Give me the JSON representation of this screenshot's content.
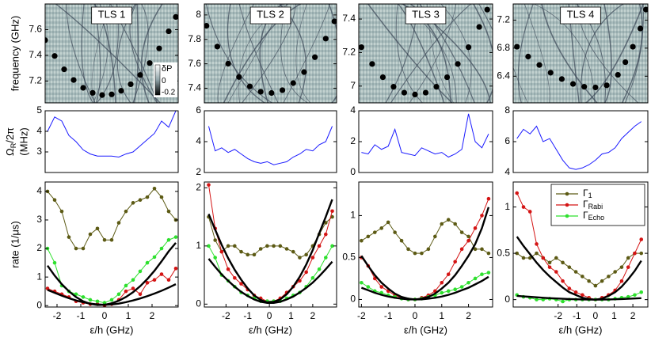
{
  "chart_data": [
    {
      "type": "scatter",
      "title": "TLS 1",
      "ylabel": "frequency (GHz)",
      "color": "#000000",
      "x": [
        -2.5,
        -2.1,
        -1.7,
        -1.3,
        -0.9,
        -0.5,
        -0.1,
        0.3,
        0.7,
        1.1,
        1.5,
        1.9,
        2.3,
        2.7,
        3.0
      ],
      "values": [
        7.518,
        7.395,
        7.291,
        7.208,
        7.147,
        7.108,
        7.091,
        7.096,
        7.124,
        7.175,
        7.247,
        7.34,
        7.454,
        7.587,
        7.699
      ],
      "xlim": [
        -2.5,
        3.1
      ],
      "ylim": [
        7.03,
        7.8
      ],
      "yticks": [
        7.2,
        7.4,
        7.6
      ],
      "colorbar": {
        "label": "δP",
        "clim": [
          -0.24,
          0.27
        ],
        "ticks": [
          0,
          -0.2
        ]
      }
    },
    {
      "type": "scatter",
      "title": "TLS 2",
      "color": "#000000",
      "x": [
        -2.9,
        -2.4,
        -1.9,
        -1.4,
        -0.9,
        -0.4,
        0.1,
        0.6,
        1.1,
        1.6,
        2.1,
        2.6,
        3.0
      ],
      "values": [
        7.911,
        7.741,
        7.601,
        7.492,
        7.415,
        7.371,
        7.361,
        7.384,
        7.442,
        7.532,
        7.654,
        7.806,
        7.948
      ],
      "xlim": [
        -3.0,
        3.1
      ],
      "ylim": [
        7.28,
        8.09
      ],
      "yticks": [
        7.4,
        7.6,
        7.8,
        8
      ]
    },
    {
      "type": "scatter",
      "title": "TLS 3",
      "color": "#000000",
      "x": [
        -2.0,
        -1.6,
        -1.2,
        -0.8,
        -0.4,
        0,
        0.4,
        0.8,
        1.2,
        1.6,
        2.0,
        2.4,
        2.7
      ],
      "values": [
        7.232,
        7.132,
        7.053,
        6.996,
        6.961,
        6.95,
        6.961,
        6.996,
        7.053,
        7.132,
        7.232,
        7.353,
        7.456
      ],
      "xlim": [
        -2.1,
        2.9
      ],
      "ylim": [
        6.9,
        7.49
      ],
      "yticks": [
        7,
        7.2,
        7.4
      ]
    },
    {
      "type": "scatter",
      "title": "TLS 4",
      "color": "#000000",
      "x": [
        -4.2,
        -3.6,
        -3.0,
        -2.4,
        -1.8,
        -1.2,
        -0.6,
        0,
        0.6,
        1.2,
        1.6,
        2.0,
        2.4,
        2.7
      ],
      "values": [
        6.82,
        6.68,
        6.56,
        6.45,
        6.36,
        6.29,
        6.25,
        6.24,
        6.27,
        6.42,
        6.6,
        6.82,
        7.08,
        7.35
      ],
      "xlim": [
        -4.4,
        2.8
      ],
      "ylim": [
        6.02,
        7.43
      ],
      "yticks": [
        6.4,
        6.8,
        7.2
      ]
    },
    {
      "type": "line",
      "ylabel": {
        "symbol": "Ω",
        "sub": "R",
        "rest": "/2π",
        "unit": "(MHz)"
      },
      "color": "#1a1aff",
      "x": [
        -2.4,
        -2.1,
        -1.8,
        -1.5,
        -1.2,
        -0.9,
        -0.6,
        -0.3,
        0,
        0.3,
        0.6,
        0.9,
        1.2,
        1.5,
        1.8,
        2.1,
        2.4,
        2.7,
        3.0
      ],
      "values": [
        4.0,
        4.7,
        4.5,
        3.8,
        3.5,
        3.1,
        2.9,
        2.8,
        2.8,
        2.8,
        2.75,
        2.9,
        3.0,
        3.3,
        3.6,
        3.9,
        4.5,
        4.2,
        5.0
      ],
      "xlim": [
        -2.5,
        3.1
      ],
      "ylim": [
        2,
        5
      ],
      "yticks": [
        3,
        4,
        5
      ]
    },
    {
      "type": "line",
      "color": "#1a1aff",
      "x": [
        -2.8,
        -2.5,
        -2.2,
        -1.9,
        -1.6,
        -1.3,
        -1.0,
        -0.7,
        -0.4,
        -0.1,
        0.2,
        0.5,
        0.8,
        1.1,
        1.4,
        1.7,
        2.0,
        2.3,
        2.6,
        2.9
      ],
      "values": [
        5.0,
        3.4,
        3.6,
        3.3,
        3.5,
        3.2,
        2.9,
        2.7,
        2.6,
        2.7,
        2.5,
        2.6,
        2.7,
        3.0,
        3.2,
        3.5,
        3.4,
        3.8,
        4.0,
        5.0
      ],
      "xlim": [
        -3.0,
        3.1
      ],
      "ylim": [
        2,
        6
      ],
      "yticks": [
        2,
        4,
        6
      ]
    },
    {
      "type": "line",
      "color": "#1a1aff",
      "x": [
        -2,
        -1.75,
        -1.5,
        -1.25,
        -1,
        -0.75,
        -0.5,
        -0.25,
        0,
        0.25,
        0.5,
        0.75,
        1,
        1.25,
        1.5,
        1.75,
        2,
        2.25,
        2.5,
        2.75
      ],
      "values": [
        1.3,
        1.2,
        1.8,
        1.5,
        1.7,
        2.8,
        1.3,
        1.2,
        1.1,
        1.6,
        1.4,
        1.2,
        1.3,
        1.0,
        1.2,
        1.5,
        3.8,
        2.0,
        1.6,
        2.5
      ],
      "xlim": [
        -2.1,
        2.9
      ],
      "ylim": [
        0,
        4
      ],
      "yticks": [
        0,
        2,
        4
      ]
    },
    {
      "type": "line",
      "color": "#1a1aff",
      "x": [
        -4.2,
        -3.85,
        -3.5,
        -3.15,
        -2.8,
        -2.45,
        -2.1,
        -1.75,
        -1.4,
        -1.05,
        -0.7,
        -0.35,
        0,
        0.35,
        0.7,
        1.05,
        1.4,
        1.75,
        2.1,
        2.45
      ],
      "values": [
        6.2,
        6.8,
        6.5,
        7.0,
        6.0,
        6.2,
        5.5,
        4.8,
        4.3,
        4.2,
        4.3,
        4.5,
        4.8,
        5.2,
        5.3,
        5.6,
        6.2,
        6.6,
        7.0,
        7.3
      ],
      "xlim": [
        -4.4,
        2.8
      ],
      "ylim": [
        4,
        8
      ],
      "yticks": [
        4,
        6,
        8
      ]
    },
    {
      "type": "rates",
      "ylabel": "rate (1/μs)",
      "xlabel": "ε/h (GHz)",
      "x": [
        -2.4,
        -2.1,
        -1.8,
        -1.5,
        -1.2,
        -0.9,
        -0.6,
        -0.3,
        0,
        0.3,
        0.6,
        0.9,
        1.2,
        1.5,
        1.8,
        2.1,
        2.4,
        2.7,
        3.0
      ],
      "series": [
        {
          "color": "#5c5a14",
          "marker": true,
          "values": [
            4.0,
            3.7,
            3.3,
            2.4,
            2.0,
            2.0,
            2.5,
            2.7,
            2.3,
            2.3,
            2.9,
            3.3,
            3.6,
            3.7,
            3.8,
            4.1,
            3.8,
            3.3,
            3.0
          ]
        },
        {
          "color": "#d41414",
          "marker": true,
          "values": [
            0.6,
            0.5,
            0.4,
            0.3,
            0.15,
            0.1,
            0.05,
            0.05,
            0.0,
            0.05,
            0.2,
            0.5,
            0.6,
            0.4,
            0.8,
            0.9,
            1.1,
            0.9,
            1.3
          ]
        },
        {
          "color": "#2ee02e",
          "marker": true,
          "values": [
            2.0,
            1.5,
            0.7,
            0.5,
            0.4,
            0.3,
            0.2,
            0.15,
            0.1,
            0.2,
            0.4,
            0.7,
            0.9,
            1.2,
            1.5,
            1.7,
            2.0,
            2.3,
            2.4
          ]
        },
        {
          "color": "#000000",
          "marker": false,
          "values": [
            1.4,
            1.05,
            0.75,
            0.5,
            0.3,
            0.15,
            0.06,
            0.02,
            0.03,
            0.08,
            0.17,
            0.3,
            0.47,
            0.68,
            0.93,
            1.22,
            1.55,
            1.9,
            2.2
          ]
        },
        {
          "color": "#000000",
          "marker": false,
          "values": [
            0.55,
            0.45,
            0.35,
            0.26,
            0.18,
            0.12,
            0.07,
            0.04,
            0.03,
            0.04,
            0.07,
            0.12,
            0.18,
            0.25,
            0.33,
            0.42,
            0.52,
            0.63,
            0.75
          ]
        }
      ],
      "xlim": [
        -2.5,
        3.1
      ],
      "ylim": [
        -0.05,
        4.33
      ],
      "yticks": [
        0,
        1,
        2,
        3,
        4
      ],
      "xticks": [
        -2,
        -1,
        0,
        1,
        2
      ]
    },
    {
      "type": "rates",
      "xlabel": "ε/h (GHz)",
      "x": [
        -2.8,
        -2.5,
        -2.2,
        -1.9,
        -1.6,
        -1.3,
        -1.0,
        -0.7,
        -0.4,
        -0.1,
        0.2,
        0.5,
        0.8,
        1.1,
        1.4,
        1.7,
        2.0,
        2.3,
        2.6,
        2.9
      ],
      "series": [
        {
          "color": "#5c5a14",
          "marker": true,
          "values": [
            1.5,
            1.1,
            0.9,
            1.0,
            1.0,
            0.9,
            0.85,
            0.85,
            0.95,
            1.0,
            1.0,
            1.0,
            0.95,
            0.9,
            0.8,
            0.85,
            1.0,
            1.2,
            1.4,
            1.5
          ]
        },
        {
          "color": "#d41414",
          "marker": true,
          "values": [
            2.05,
            1.3,
            0.9,
            0.6,
            0.45,
            0.35,
            0.25,
            0.15,
            0.1,
            0.05,
            0.05,
            0.1,
            0.2,
            0.3,
            0.4,
            0.55,
            0.8,
            1.0,
            1.2,
            1.6
          ]
        },
        {
          "color": "#2ee02e",
          "marker": true,
          "values": [
            1.0,
            0.8,
            0.5,
            0.4,
            0.3,
            0.2,
            0.15,
            0.1,
            0.05,
            0.05,
            0.05,
            0.05,
            0.1,
            0.15,
            0.2,
            0.3,
            0.45,
            0.6,
            0.8,
            1.0
          ]
        },
        {
          "color": "#000000",
          "marker": false,
          "values": [
            1.55,
            1.28,
            1.02,
            0.79,
            0.59,
            0.42,
            0.27,
            0.15,
            0.07,
            0.03,
            0.04,
            0.08,
            0.17,
            0.3,
            0.47,
            0.68,
            0.93,
            1.22,
            1.5,
            1.8
          ]
        },
        {
          "color": "#000000",
          "marker": false,
          "values": [
            0.78,
            0.64,
            0.51,
            0.4,
            0.3,
            0.21,
            0.14,
            0.08,
            0.04,
            0.02,
            0.02,
            0.04,
            0.08,
            0.13,
            0.2,
            0.28,
            0.37,
            0.48,
            0.6,
            0.73
          ]
        }
      ],
      "xlim": [
        -3.0,
        3.1
      ],
      "ylim": [
        -0.05,
        2.1
      ],
      "yticks": [
        0,
        1,
        2
      ],
      "xticks": [
        -2,
        -1,
        0,
        1,
        2
      ]
    },
    {
      "type": "rates",
      "xlabel": "ε/h (GHz)",
      "x": [
        -2,
        -1.75,
        -1.5,
        -1.25,
        -1,
        -0.75,
        -0.5,
        -0.25,
        0,
        0.25,
        0.5,
        0.75,
        1,
        1.25,
        1.5,
        1.75,
        2,
        2.25,
        2.5,
        2.75
      ],
      "series": [
        {
          "color": "#5c5a14",
          "marker": true,
          "values": [
            0.7,
            0.75,
            0.8,
            0.85,
            0.92,
            0.8,
            0.7,
            0.6,
            0.55,
            0.55,
            0.6,
            0.75,
            0.9,
            0.95,
            0.9,
            0.8,
            0.75,
            0.6,
            0.6,
            0.55
          ]
        },
        {
          "color": "#d41414",
          "marker": true,
          "values": [
            0.5,
            0.4,
            0.25,
            0.15,
            0.1,
            0.05,
            0.02,
            0.0,
            0.0,
            0.02,
            0.05,
            0.1,
            0.2,
            0.3,
            0.45,
            0.6,
            0.7,
            0.85,
            1.0,
            1.2
          ]
        },
        {
          "color": "#2ee02e",
          "marker": true,
          "values": [
            0.2,
            0.15,
            0.1,
            0.08,
            0.05,
            0.03,
            0.01,
            0.0,
            0.0,
            0.01,
            0.03,
            0.05,
            0.08,
            0.1,
            0.12,
            0.15,
            0.2,
            0.25,
            0.3,
            0.32
          ]
        },
        {
          "color": "#000000",
          "marker": false,
          "values": [
            0.52,
            0.4,
            0.29,
            0.2,
            0.13,
            0.07,
            0.03,
            0.01,
            0.0,
            0.01,
            0.03,
            0.07,
            0.13,
            0.2,
            0.29,
            0.4,
            0.52,
            0.66,
            0.85,
            1.1
          ]
        },
        {
          "color": "#000000",
          "marker": false,
          "values": [
            0.14,
            0.11,
            0.08,
            0.055,
            0.035,
            0.02,
            0.01,
            0.002,
            0,
            0.002,
            0.01,
            0.02,
            0.035,
            0.055,
            0.08,
            0.11,
            0.14,
            0.18,
            0.22,
            0.27
          ]
        }
      ],
      "xlim": [
        -2.1,
        2.9
      ],
      "ylim": [
        -0.09,
        1.4
      ],
      "yticks": [
        0,
        0.5,
        1
      ],
      "xticks": [
        -2,
        -1,
        0,
        1,
        2
      ]
    },
    {
      "type": "rates",
      "xlabel": "ε/h (GHz)",
      "legend": "upper right",
      "x": [
        -4.2,
        -3.85,
        -3.5,
        -3.15,
        -2.8,
        -2.45,
        -2.1,
        -1.75,
        -1.4,
        -1.05,
        -0.7,
        -0.35,
        0,
        0.35,
        0.7,
        1.05,
        1.4,
        1.75,
        2.1,
        2.45
      ],
      "series": [
        {
          "name": "Γ",
          "name_sub": "1",
          "color": "#5c5a14",
          "marker": true,
          "values": [
            0.5,
            0.45,
            0.45,
            0.5,
            0.45,
            0.4,
            0.45,
            0.4,
            0.35,
            0.3,
            0.25,
            0.2,
            0.15,
            0.2,
            0.25,
            0.3,
            0.35,
            0.45,
            0.5,
            0.5
          ]
        },
        {
          "name": "Γ",
          "name_sub": "Rabi",
          "color": "#d41414",
          "marker": true,
          "values": [
            1.15,
            1.0,
            0.95,
            0.6,
            0.45,
            0.35,
            0.3,
            0.2,
            0.12,
            0.08,
            0.05,
            0.02,
            0.0,
            0.02,
            0.05,
            0.1,
            0.2,
            0.35,
            0.5,
            0.65
          ]
        },
        {
          "name": "Γ",
          "name_sub": "Echo",
          "color": "#2ee02e",
          "marker": true,
          "values": [
            0.05,
            0.03,
            0.02,
            0.0,
            0.0,
            0.01,
            0.0,
            -0.02,
            0.0,
            0.0,
            0.0,
            0.0,
            0.0,
            0.0,
            0.0,
            0.01,
            0.02,
            0.03,
            0.05,
            0.08
          ]
        },
        {
          "color": "#000000",
          "marker": false,
          "values": [
            0.68,
            0.58,
            0.49,
            0.4,
            0.32,
            0.25,
            0.19,
            0.13,
            0.08,
            0.05,
            0.02,
            0.005,
            0,
            0.01,
            0.04,
            0.08,
            0.14,
            0.22,
            0.31,
            0.42
          ]
        },
        {
          "color": "#000000",
          "marker": false,
          "values": [
            0.04,
            0.035,
            0.03,
            0.025,
            0.02,
            0.016,
            0.012,
            0.009,
            0.006,
            0.004,
            0.002,
            0.001,
            0,
            0.001,
            0.002,
            0.004,
            0.006,
            0.009,
            0.012,
            0.016
          ]
        }
      ],
      "xlim": [
        -4.4,
        2.8
      ],
      "ylim": [
        -0.08,
        1.27
      ],
      "yticks": [
        0,
        0.5,
        1
      ],
      "xticks": [
        -2,
        -1,
        0,
        1,
        2
      ]
    }
  ]
}
